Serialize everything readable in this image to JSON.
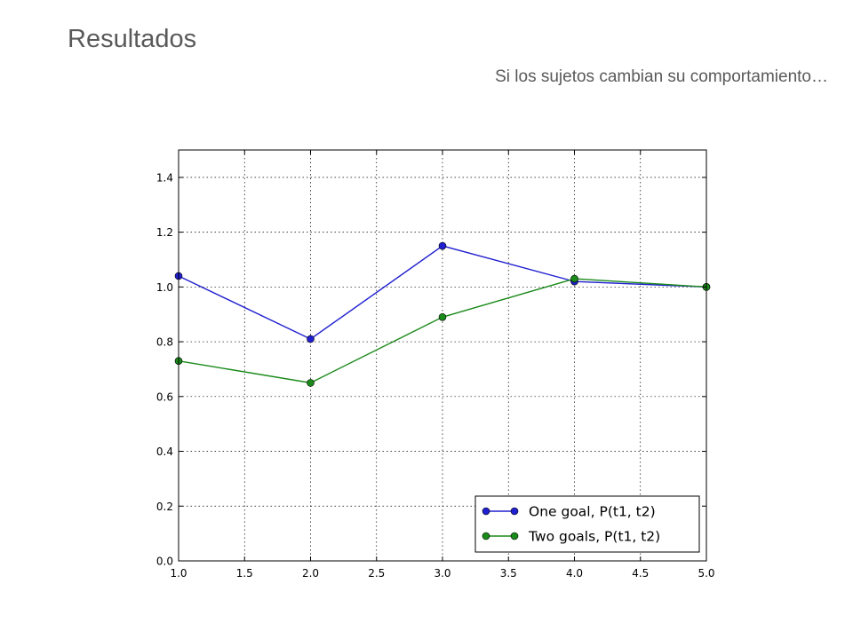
{
  "slide": {
    "title": "Resultados",
    "subtitle": "Si los sujetos cambian su comportamiento…"
  },
  "colors": {
    "series_blue": "#2020d0",
    "series_green": "#1a8a1a"
  },
  "chart_data": {
    "type": "line",
    "xlim": [
      1.0,
      5.0
    ],
    "ylim": [
      0.0,
      1.5
    ],
    "x_ticks": [
      "1.0",
      "1.5",
      "2.0",
      "2.5",
      "3.0",
      "3.5",
      "4.0",
      "4.5",
      "5.0"
    ],
    "y_ticks": [
      "0.0",
      "0.2",
      "0.4",
      "0.6",
      "0.8",
      "1.0",
      "1.2",
      "1.4"
    ],
    "grid": true,
    "legend_position": "lower-right",
    "series": [
      {
        "name": "One goal, P(t1, t2)",
        "color": "#2020d0",
        "x": [
          1,
          2,
          3,
          4,
          5
        ],
        "y": [
          1.04,
          0.81,
          1.15,
          1.02,
          1.0
        ]
      },
      {
        "name": "Two goals, P(t1, t2)",
        "color": "#1a8a1a",
        "x": [
          1,
          2,
          3,
          4,
          5
        ],
        "y": [
          0.73,
          0.65,
          0.89,
          1.03,
          1.0
        ]
      }
    ]
  }
}
